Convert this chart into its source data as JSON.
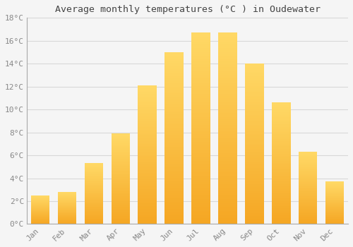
{
  "title": "Average monthly temperatures (°C ) in Oudewater",
  "months": [
    "Jan",
    "Feb",
    "Mar",
    "Apr",
    "May",
    "Jun",
    "Jul",
    "Aug",
    "Sep",
    "Oct",
    "Nov",
    "Dec"
  ],
  "values": [
    2.5,
    2.8,
    5.3,
    7.9,
    12.1,
    15.0,
    16.7,
    16.7,
    14.0,
    10.6,
    6.3,
    3.7
  ],
  "bar_color_bottom": "#F5A623",
  "bar_color_top": "#FFD966",
  "bar_color_right_edge": "#E8961A",
  "ylim": [
    0,
    18
  ],
  "ytick_step": 2,
  "background_color": "#f5f5f5",
  "plot_bg_color": "#f5f5f5",
  "grid_color": "#d8d8d8",
  "title_fontsize": 9.5,
  "tick_fontsize": 8,
  "title_font": "monospace",
  "tick_font": "monospace",
  "tick_color": "#888888",
  "bar_width": 0.7
}
